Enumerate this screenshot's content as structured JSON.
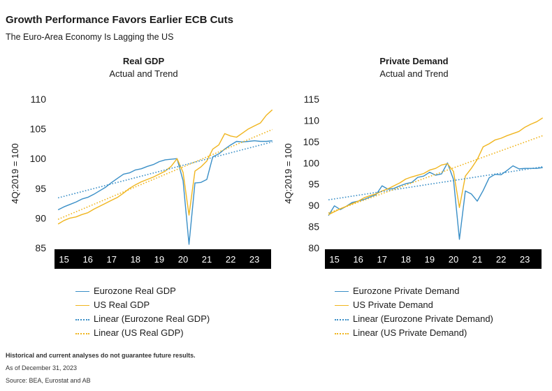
{
  "title": "Growth Performance Favors Earlier ECB Cuts",
  "subtitle": "The Euro-Area Economy Is Lagging the US",
  "footnote": "Historical and current analyses do not guarantee future results.",
  "as_of": "As of December 31, 2023",
  "source": "Source: BEA, Eurostat and AB",
  "colors": {
    "eurozone": "#3a8fc7",
    "us": "#f0b51e",
    "axis_band": "#000000"
  },
  "chart_data": [
    {
      "type": "line",
      "title": "Real GDP",
      "subtitle": "Actual and Trend",
      "ylabel": "4Q:2019 = 100",
      "ylim": [
        85,
        110
      ],
      "yticks": [
        85,
        90,
        95,
        100,
        105,
        110
      ],
      "xlim": [
        14.6,
        23.7
      ],
      "xticks": [
        15,
        16,
        17,
        18,
        19,
        20,
        21,
        22,
        23
      ],
      "xtick_labels": [
        "15",
        "16",
        "17",
        "18",
        "19",
        "20",
        "21",
        "22",
        "23"
      ],
      "grid": false,
      "legend_position": "bottom",
      "series": [
        {
          "name": "Eurozone Real GDP",
          "style": "solid",
          "color": "#3a8fc7",
          "x": [
            14.75,
            15,
            15.25,
            15.5,
            15.75,
            16,
            16.25,
            16.5,
            16.75,
            17,
            17.25,
            17.5,
            17.75,
            18,
            18.25,
            18.5,
            18.75,
            19,
            19.25,
            19.5,
            19.75,
            20,
            20.25,
            20.5,
            20.75,
            21,
            21.25,
            21.5,
            21.75,
            22,
            22.25,
            22.5,
            22.75,
            23,
            23.25,
            23.5,
            23.75
          ],
          "values": [
            91.4,
            91.9,
            92.3,
            92.7,
            93.2,
            93.5,
            94.0,
            94.6,
            95.2,
            96.0,
            96.7,
            97.4,
            97.6,
            98.1,
            98.3,
            98.7,
            99.0,
            99.5,
            99.8,
            99.9,
            100.0,
            96.3,
            85.6,
            95.9,
            96.0,
            96.5,
            100.3,
            100.8,
            101.6,
            102.3,
            102.9,
            102.8,
            102.9,
            103.0,
            102.9,
            102.9,
            103.0
          ]
        },
        {
          "name": "US Real GDP",
          "style": "solid",
          "color": "#f0b51e",
          "x": [
            14.75,
            15,
            15.25,
            15.5,
            15.75,
            16,
            16.25,
            16.5,
            16.75,
            17,
            17.25,
            17.5,
            17.75,
            18,
            18.25,
            18.5,
            18.75,
            19,
            19.25,
            19.5,
            19.75,
            20,
            20.25,
            20.5,
            20.75,
            21,
            21.25,
            21.5,
            21.75,
            22,
            22.25,
            22.5,
            22.75,
            23,
            23.25,
            23.5,
            23.75
          ],
          "values": [
            89.0,
            89.6,
            90.0,
            90.2,
            90.6,
            90.9,
            91.5,
            92.0,
            92.5,
            93.0,
            93.5,
            94.2,
            95.0,
            95.6,
            96.1,
            96.5,
            96.9,
            97.4,
            97.9,
            98.7,
            100.0,
            97.7,
            90.5,
            97.9,
            98.6,
            99.6,
            101.6,
            102.3,
            104.2,
            103.8,
            103.6,
            104.3,
            105.0,
            105.5,
            106.0,
            107.3,
            108.2
          ]
        },
        {
          "name": "Linear (Eurozone Real GDP)",
          "style": "dotted",
          "color": "#3a8fc7",
          "x": [
            14.75,
            23.75
          ],
          "values": [
            93.4,
            102.8
          ]
        },
        {
          "name": "Linear (US Real GDP)",
          "style": "dotted",
          "color": "#f0b51e",
          "x": [
            14.75,
            23.75
          ],
          "values": [
            89.8,
            104.9
          ]
        }
      ]
    },
    {
      "type": "line",
      "title": "Private Demand",
      "subtitle": "Actual and Trend",
      "ylabel": "4Q:2019 = 100",
      "ylim": [
        80,
        115
      ],
      "yticks": [
        80,
        85,
        90,
        95,
        100,
        105,
        110,
        115
      ],
      "xlim": [
        14.6,
        23.7
      ],
      "xticks": [
        15,
        16,
        17,
        18,
        19,
        20,
        21,
        22,
        23
      ],
      "xtick_labels": [
        "15",
        "16",
        "17",
        "18",
        "19",
        "20",
        "21",
        "22",
        "23"
      ],
      "grid": false,
      "legend_position": "bottom",
      "series": [
        {
          "name": "Eurozone Private Demand",
          "style": "solid",
          "color": "#3a8fc7",
          "x": [
            14.75,
            15,
            15.25,
            15.5,
            15.75,
            16,
            16.25,
            16.5,
            16.75,
            17,
            17.25,
            17.5,
            17.75,
            18,
            18.25,
            18.5,
            18.75,
            19,
            19.25,
            19.5,
            19.75,
            20,
            20.25,
            20.5,
            20.75,
            21,
            21.25,
            21.5,
            21.75,
            22,
            22.25,
            22.5,
            22.75,
            23,
            23.25,
            23.5,
            23.75
          ],
          "values": [
            87.6,
            89.9,
            89.0,
            89.8,
            90.7,
            91.0,
            91.4,
            92.0,
            92.5,
            94.6,
            93.8,
            94.0,
            94.6,
            95.1,
            95.4,
            96.6,
            96.9,
            97.8,
            97.1,
            97.4,
            100.0,
            96.1,
            82.0,
            93.4,
            92.7,
            91.0,
            93.5,
            96.5,
            97.3,
            97.2,
            98.2,
            99.3,
            98.6,
            98.7,
            98.7,
            98.7,
            98.9
          ]
        },
        {
          "name": "US Private Demand",
          "style": "solid",
          "color": "#f0b51e",
          "x": [
            14.75,
            15,
            15.25,
            15.5,
            15.75,
            16,
            16.25,
            16.5,
            16.75,
            17,
            17.25,
            17.5,
            17.75,
            18,
            18.25,
            18.5,
            18.75,
            19,
            19.25,
            19.5,
            19.75,
            20,
            20.25,
            20.5,
            20.75,
            21,
            21.25,
            21.5,
            21.75,
            22,
            22.25,
            22.5,
            22.75,
            23,
            23.25,
            23.5,
            23.75
          ],
          "values": [
            87.8,
            88.5,
            89.2,
            89.8,
            90.4,
            91.0,
            91.8,
            92.3,
            92.7,
            93.4,
            93.9,
            94.6,
            95.3,
            96.2,
            96.7,
            97.1,
            97.5,
            98.3,
            98.7,
            99.5,
            99.8,
            98.0,
            89.5,
            96.9,
            98.7,
            100.8,
            103.8,
            104.5,
            105.4,
            105.8,
            106.4,
            106.9,
            107.4,
            108.4,
            109.1,
            109.7,
            110.6
          ]
        },
        {
          "name": "Linear (Eurozone Private Demand)",
          "style": "dotted",
          "color": "#3a8fc7",
          "x": [
            14.75,
            23.75
          ],
          "values": [
            91.3,
            99.1
          ]
        },
        {
          "name": "Linear (US Private Demand)",
          "style": "dotted",
          "color": "#f0b51e",
          "x": [
            14.75,
            23.75
          ],
          "values": [
            88.2,
            106.4
          ]
        }
      ]
    }
  ]
}
